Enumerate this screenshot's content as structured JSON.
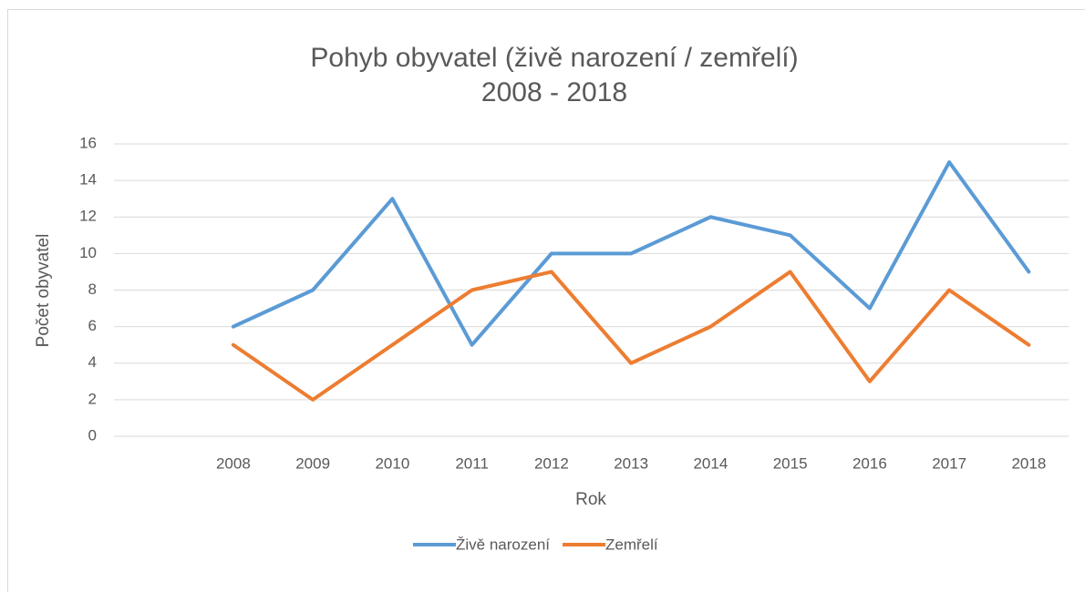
{
  "chart_data": {
    "type": "line",
    "title": "Pohyb obyvatel (živě narození / zemřelí)",
    "subtitle": "2008 - 2018",
    "x_label": "Rok",
    "y_label": "Počet obyvatel",
    "categories": [
      null,
      "2008",
      "2009",
      "2010",
      "2011",
      "2012",
      "2013",
      "2014",
      "2015",
      "2016",
      "2017",
      "2018"
    ],
    "series": [
      {
        "name": "Živě narození",
        "color": "#5b9bd5",
        "values": [
          null,
          6,
          8,
          13,
          5,
          10,
          10,
          12,
          11,
          7,
          15,
          9
        ]
      },
      {
        "name": "Zemřelí",
        "color": "#ed7d31",
        "values": [
          null,
          5,
          2,
          5,
          8,
          9,
          4,
          6,
          9,
          3,
          8,
          5
        ]
      }
    ],
    "ylim": [
      0,
      16
    ],
    "yticks": [
      0,
      2,
      4,
      6,
      8,
      10,
      12,
      14,
      16
    ],
    "grid": true,
    "legend": "bottom"
  }
}
